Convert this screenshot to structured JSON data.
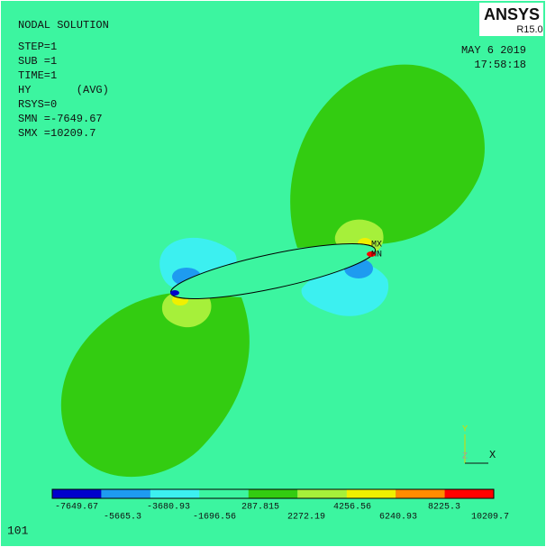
{
  "header": {
    "title": "NODAL SOLUTION",
    "lines": [
      "STEP=1",
      "SUB =1",
      "TIME=1",
      "HY       (AVG)",
      "RSYS=0",
      "SMN =-7649.67",
      "SMX =10209.7"
    ]
  },
  "date": "MAY  6 2019",
  "time": "17:58:18",
  "logo": {
    "name": "ANSYS",
    "version": "R15.0"
  },
  "markers": {
    "max": "MX",
    "min": "MN"
  },
  "triad": {
    "y": "Y",
    "z": "Z",
    "x": "X"
  },
  "window_number": "101",
  "legend": {
    "colors": [
      "#0000cc",
      "#1e9bf0",
      "#3cf0f0",
      "#3cf5a0",
      "#33cc11",
      "#a6f03a",
      "#f0f000",
      "#ff8c00",
      "#ff0000"
    ],
    "labels": [
      "-7649.67",
      "-5665.3",
      "-3680.93",
      "-1696.56",
      "287.815",
      "2272.19",
      "4256.56",
      "6240.93",
      "8225.3",
      "10209.7"
    ]
  }
}
